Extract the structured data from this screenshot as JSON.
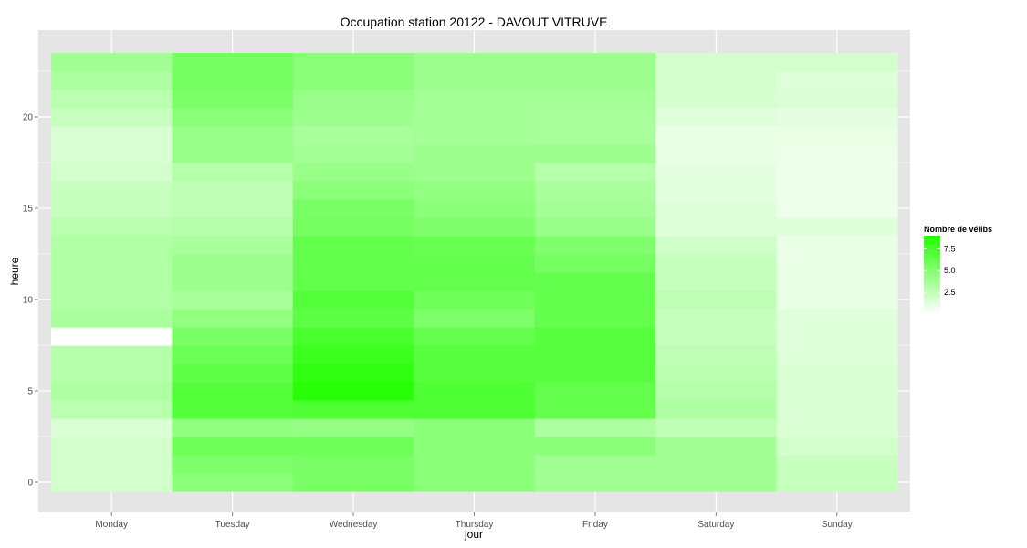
{
  "chart_data": {
    "type": "heatmap",
    "title": "Occupation station 20122 - DAVOUT VITRUVE",
    "xlabel": "jour",
    "ylabel": "heure",
    "categories": [
      "Monday",
      "Tuesday",
      "Wednesday",
      "Thursday",
      "Friday",
      "Saturday",
      "Sunday"
    ],
    "hours": [
      0,
      1,
      2,
      3,
      4,
      5,
      6,
      7,
      8,
      9,
      10,
      11,
      12,
      13,
      14,
      15,
      16,
      17,
      18,
      19,
      20,
      21,
      22,
      23
    ],
    "y_ticks": [
      0,
      5,
      10,
      15,
      20
    ],
    "ylim": [
      -0.5,
      23.5
    ],
    "legend": {
      "title": "Nombre de vélibs",
      "labels": [
        "2.5",
        "5.0",
        "7.5"
      ],
      "ticks": [
        2.5,
        5.0,
        7.5
      ],
      "range": [
        0,
        9
      ],
      "position": "right",
      "low_color": "#ffffff",
      "high_color": "#22ff00"
    },
    "background_color": "#e5e5e5",
    "grid": true,
    "values": [
      [
        1.8,
        1.8,
        1.8,
        1.5,
        2.8,
        3.3,
        3.0,
        3.0,
        null,
        3.5,
        3.2,
        3.2,
        3.2,
        3.2,
        2.8,
        2.3,
        2.3,
        1.8,
        1.6,
        1.6,
        2.3,
        2.8,
        3.3,
        3.8
      ],
      [
        4.7,
        5.2,
        5.9,
        4.5,
        7.0,
        7.0,
        6.5,
        6.0,
        5.4,
        4.5,
        3.5,
        4.0,
        4.0,
        3.5,
        3.0,
        2.6,
        2.6,
        3.0,
        4.2,
        4.2,
        4.7,
        5.3,
        5.6,
        5.6
      ],
      [
        5.4,
        5.4,
        5.9,
        4.3,
        7.2,
        8.8,
        8.4,
        7.9,
        7.4,
        6.6,
        7.0,
        6.3,
        6.3,
        6.3,
        5.6,
        5.4,
        4.7,
        4.2,
        3.7,
        3.5,
        4.0,
        4.2,
        4.7,
        4.7
      ],
      [
        4.7,
        4.7,
        4.7,
        4.7,
        7.2,
        7.2,
        6.8,
        6.8,
        6.3,
        5.3,
        5.9,
        6.3,
        6.3,
        6.1,
        5.2,
        4.7,
        4.5,
        4.0,
        4.0,
        3.7,
        3.7,
        3.7,
        4.0,
        4.0
      ],
      [
        3.8,
        3.8,
        4.7,
        3.3,
        6.3,
        6.3,
        6.8,
        6.8,
        6.8,
        6.3,
        6.3,
        6.3,
        5.6,
        5.2,
        4.2,
        3.7,
        3.5,
        3.0,
        4.0,
        3.5,
        3.5,
        3.7,
        4.0,
        4.0
      ],
      [
        3.8,
        3.8,
        3.8,
        2.6,
        3.3,
        3.0,
        2.8,
        2.6,
        2.3,
        2.3,
        2.6,
        2.3,
        2.3,
        2.0,
        1.3,
        1.3,
        1.1,
        1.1,
        0.9,
        0.9,
        1.3,
        1.7,
        1.8,
        1.8
      ],
      [
        2.3,
        2.3,
        1.8,
        1.5,
        1.5,
        1.5,
        1.5,
        1.3,
        1.3,
        1.3,
        0.9,
        0.9,
        0.9,
        0.9,
        1.3,
        0.7,
        0.7,
        0.7,
        0.7,
        0.9,
        1.1,
        1.5,
        1.3,
        1.8
      ]
    ]
  }
}
